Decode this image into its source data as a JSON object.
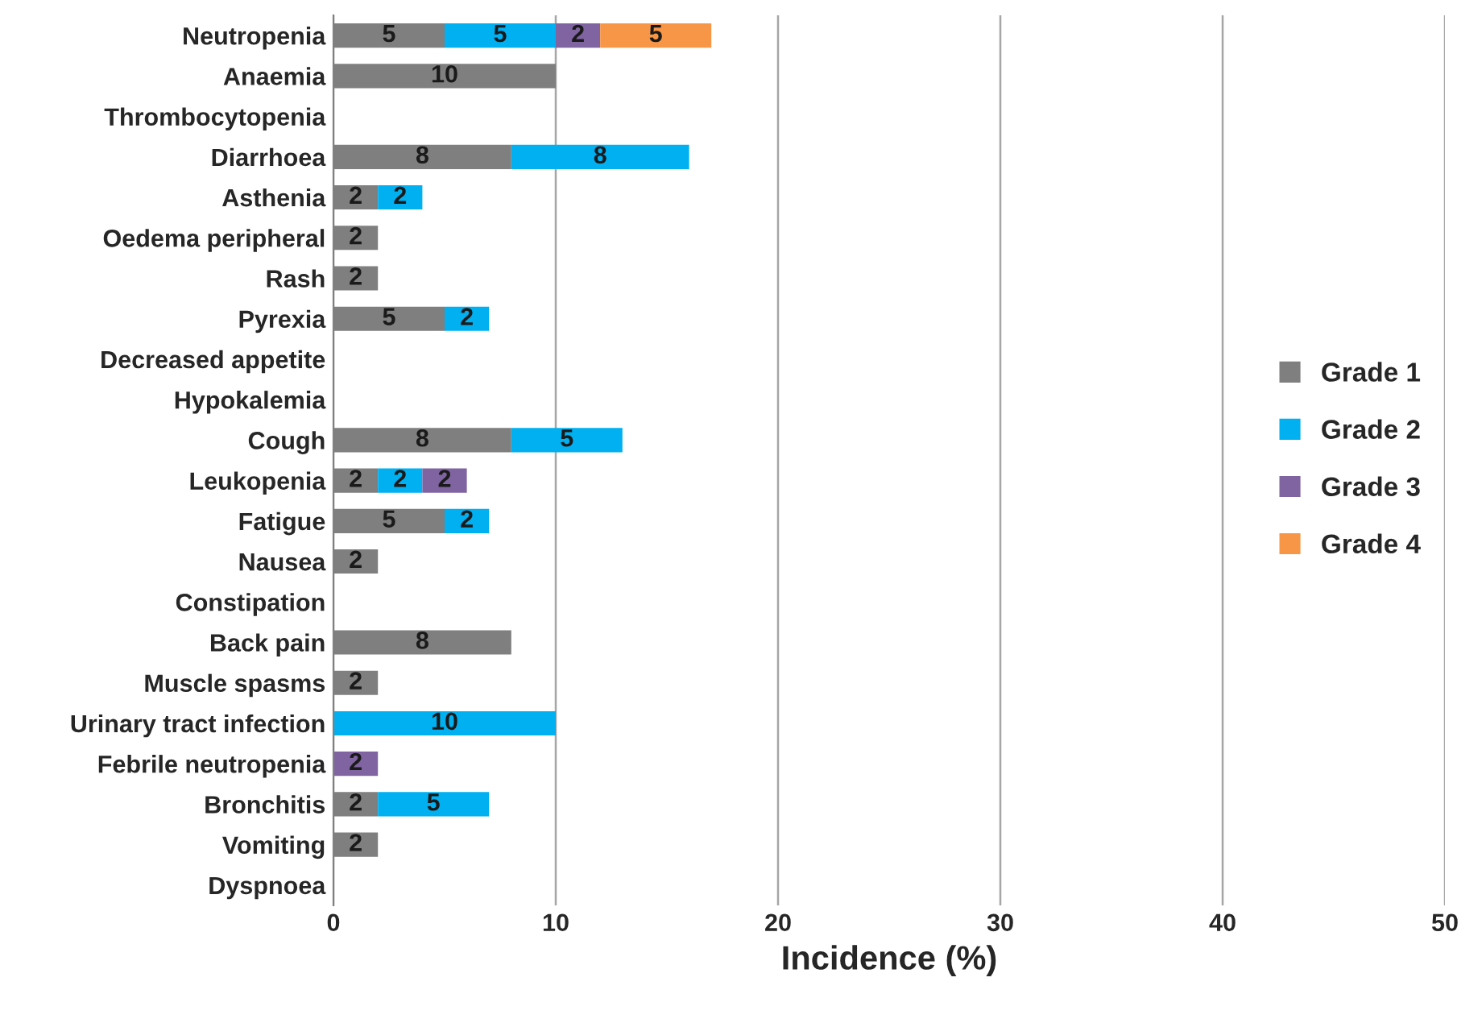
{
  "chart_data": {
    "type": "bar",
    "orientation": "horizontal",
    "stacked": true,
    "xlabel": "Incidence (%)",
    "categories": [
      "Neutropenia",
      "Anaemia",
      "Thrombocytopenia",
      "Diarrhoea",
      "Asthenia",
      "Oedema peripheral",
      "Rash",
      "Pyrexia",
      "Decreased appetite",
      "Hypokalemia",
      "Cough",
      "Leukopenia",
      "Fatigue",
      "Nausea",
      "Constipation",
      "Back pain",
      "Muscle spasms",
      "Urinary tract infection",
      "Febrile neutropenia",
      "Bronchitis",
      "Vomiting",
      "Dyspnoea"
    ],
    "series": [
      {
        "name": "Grade 1",
        "color": "#7f7f7f",
        "values": [
          5,
          10,
          null,
          8,
          2,
          2,
          2,
          5,
          null,
          null,
          8,
          2,
          5,
          2,
          null,
          8,
          2,
          null,
          null,
          2,
          2,
          null
        ]
      },
      {
        "name": "Grade 2",
        "color": "#00b0f0",
        "values": [
          5,
          null,
          null,
          8,
          2,
          null,
          null,
          2,
          null,
          null,
          5,
          2,
          2,
          null,
          null,
          null,
          null,
          10,
          null,
          5,
          null,
          null
        ]
      },
      {
        "name": "Grade 3",
        "color": "#8064a2",
        "values": [
          2,
          null,
          null,
          null,
          null,
          null,
          null,
          null,
          null,
          null,
          null,
          2,
          null,
          null,
          null,
          null,
          null,
          null,
          2,
          null,
          null,
          null
        ]
      },
      {
        "name": "Grade 4",
        "color": "#f79646",
        "values": [
          5,
          null,
          null,
          null,
          null,
          null,
          null,
          null,
          null,
          null,
          null,
          null,
          null,
          null,
          null,
          null,
          null,
          null,
          null,
          null,
          null,
          null
        ]
      }
    ],
    "xlim": [
      0,
      50
    ],
    "xticks": [
      0,
      10,
      20,
      30,
      40,
      50
    ],
    "grid": "x",
    "legend": "right",
    "data_labels": true
  }
}
